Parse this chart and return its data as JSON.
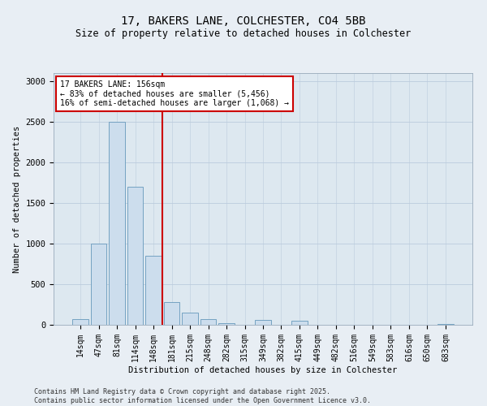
{
  "title1": "17, BAKERS LANE, COLCHESTER, CO4 5BB",
  "title2": "Size of property relative to detached houses in Colchester",
  "xlabel": "Distribution of detached houses by size in Colchester",
  "ylabel": "Number of detached properties",
  "categories": [
    "14sqm",
    "47sqm",
    "81sqm",
    "114sqm",
    "148sqm",
    "181sqm",
    "215sqm",
    "248sqm",
    "282sqm",
    "315sqm",
    "349sqm",
    "382sqm",
    "415sqm",
    "449sqm",
    "482sqm",
    "516sqm",
    "549sqm",
    "583sqm",
    "616sqm",
    "650sqm",
    "683sqm"
  ],
  "values": [
    75,
    1000,
    2500,
    1700,
    850,
    280,
    150,
    75,
    25,
    0,
    60,
    0,
    55,
    0,
    0,
    0,
    0,
    0,
    0,
    0,
    10
  ],
  "bar_color": "#ccdded",
  "bar_edge_color": "#6699bb",
  "vline_x": 4.5,
  "vline_color": "#cc0000",
  "annotation_text": "17 BAKERS LANE: 156sqm\n← 83% of detached houses are smaller (5,456)\n16% of semi-detached houses are larger (1,068) →",
  "annotation_box_color": "#ffffff",
  "annotation_box_edge": "#cc0000",
  "ylim": [
    0,
    3100
  ],
  "yticks": [
    0,
    500,
    1000,
    1500,
    2000,
    2500,
    3000
  ],
  "footer1": "Contains HM Land Registry data © Crown copyright and database right 2025.",
  "footer2": "Contains public sector information licensed under the Open Government Licence v3.0.",
  "bg_color": "#e8eef4",
  "plot_bg_color": "#dde8f0"
}
